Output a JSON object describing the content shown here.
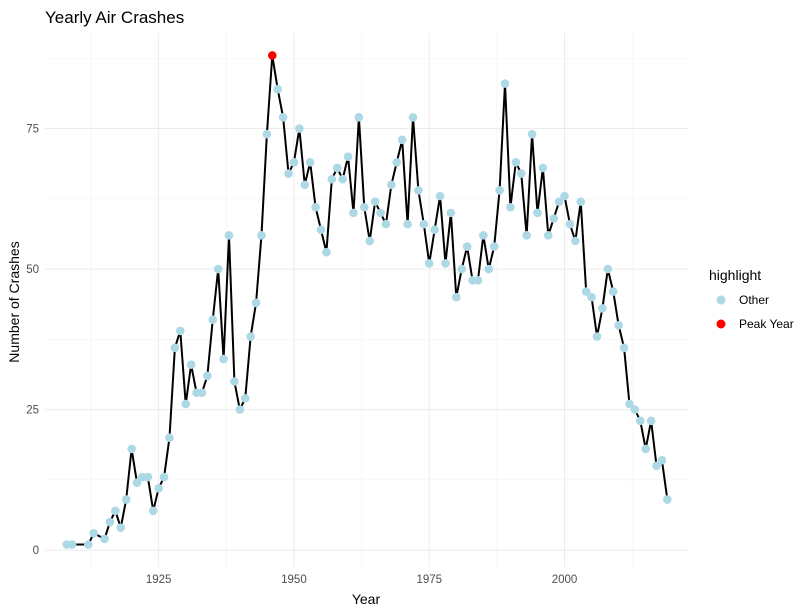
{
  "chart_data": {
    "type": "line",
    "title": "Yearly Air Crashes",
    "xlabel": "Year",
    "ylabel": "Number of Crashes",
    "xlim": [
      1904,
      2023
    ],
    "ylim": [
      -3,
      92
    ],
    "x_ticks": [
      1925,
      1950,
      1975,
      2000
    ],
    "y_ticks": [
      0,
      25,
      50,
      75
    ],
    "grid": true,
    "legend": {
      "title": "highlight",
      "placement": "right",
      "entries": [
        {
          "label": "Other",
          "color": "#add8e6"
        },
        {
          "label": "Peak Year",
          "color": "#ff0000"
        }
      ]
    },
    "line_color": "#000000",
    "peak_year": 1946,
    "series": [
      {
        "x": [
          1908,
          1909,
          1912,
          1913,
          1915,
          1916,
          1917,
          1918,
          1919,
          1920,
          1921,
          1922,
          1923,
          1924,
          1925,
          1926,
          1927,
          1928,
          1929,
          1930,
          1931,
          1932,
          1933,
          1934,
          1935,
          1936,
          1937,
          1938,
          1939,
          1940,
          1941,
          1942,
          1943,
          1944,
          1945,
          1946,
          1947,
          1948,
          1949,
          1950,
          1951,
          1952,
          1953,
          1954,
          1955,
          1956,
          1957,
          1958,
          1959,
          1960,
          1961,
          1962,
          1963,
          1964,
          1965,
          1966,
          1967,
          1968,
          1969,
          1970,
          1971,
          1972,
          1973,
          1974,
          1975,
          1976,
          1977,
          1978,
          1979,
          1980,
          1981,
          1982,
          1983,
          1984,
          1985,
          1986,
          1987,
          1988,
          1989,
          1990,
          1991,
          1992,
          1993,
          1994,
          1995,
          1996,
          1997,
          1998,
          1999,
          2000,
          2001,
          2002,
          2003,
          2004,
          2005,
          2006,
          2007,
          2008,
          2009,
          2010,
          2011,
          2012,
          2013,
          2014,
          2015,
          2016,
          2017,
          2018,
          2019
        ],
        "y": [
          1,
          1,
          1,
          3,
          2,
          5,
          7,
          4,
          9,
          18,
          12,
          13,
          13,
          7,
          11,
          13,
          20,
          36,
          39,
          26,
          33,
          28,
          28,
          31,
          41,
          50,
          34,
          56,
          30,
          25,
          27,
          38,
          44,
          56,
          74,
          88,
          82,
          77,
          67,
          69,
          75,
          65,
          69,
          61,
          57,
          53,
          66,
          68,
          66,
          70,
          60,
          77,
          61,
          55,
          62,
          60,
          58,
          65,
          69,
          73,
          58,
          77,
          64,
          58,
          51,
          57,
          63,
          51,
          60,
          45,
          50,
          54,
          48,
          48,
          56,
          50,
          54,
          64,
          83,
          61,
          69,
          67,
          56,
          74,
          60,
          68,
          56,
          59,
          62,
          63,
          58,
          55,
          62,
          46,
          45,
          38,
          43,
          50,
          46,
          40,
          36,
          26,
          25,
          23,
          18,
          23,
          15,
          16,
          9
        ]
      }
    ]
  }
}
